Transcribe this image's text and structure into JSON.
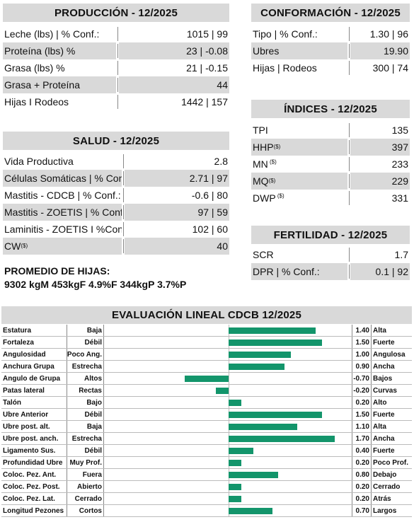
{
  "produccion": {
    "title": "PRODUCCIÓN - 12/2025",
    "rows": [
      {
        "label": "Leche (lbs) | % Conf.:",
        "value": "1015 | 99",
        "shaded": false
      },
      {
        "label": "Proteína (lbs) %",
        "value": "23 | -0.08",
        "shaded": true
      },
      {
        "label": "Grasa (lbs) %",
        "value": "21 | -0.15",
        "shaded": false
      },
      {
        "label": "Grasa + Proteína",
        "value": "44",
        "shaded": true
      },
      {
        "label": "Hijas I Rodeos",
        "value": "1442 | 157",
        "shaded": false
      }
    ]
  },
  "conformacion": {
    "title": "CONFORMACIÓN - 12/2025",
    "rows": [
      {
        "label": "Tipo | % Conf.:",
        "value": "1.30 | 96",
        "shaded": false
      },
      {
        "label": "Ubres",
        "value": "19.90",
        "shaded": true
      },
      {
        "label": "Hijas | Rodeos",
        "value": "300 | 74",
        "shaded": false
      }
    ]
  },
  "indices": {
    "title": "ÍNDICES - 12/2025",
    "rows": [
      {
        "label": "TPI",
        "sup": "",
        "value": "135",
        "shaded": false
      },
      {
        "label": "HHP",
        "sup": "($)",
        "value": "397",
        "shaded": true
      },
      {
        "label": "MN",
        "sup": "($)",
        "value": "233",
        "shaded": false
      },
      {
        "label": "MQ",
        "sup": "($)",
        "value": "229",
        "shaded": true
      },
      {
        "label": "DWP",
        "sup": "($)",
        "value": "331",
        "shaded": false
      }
    ]
  },
  "salud": {
    "title": "SALUD - 12/2025",
    "rows": [
      {
        "label": "Vida Productiva",
        "sup": "",
        "value": "2.8",
        "shaded": false
      },
      {
        "label": "Células Somáticas | % Conf.:",
        "sup": "",
        "value": "2.71 | 97",
        "shaded": true
      },
      {
        "label": "Mastitis - CDCB | % Conf.:",
        "sup": "",
        "value": "-0.6 | 80",
        "shaded": false
      },
      {
        "label": "Mastitis - ZOETIS | % Conf.:",
        "sup": "",
        "value": "97 | 59",
        "shaded": true
      },
      {
        "label": "Laminitis - ZOETIS I %Conf.:",
        "sup": "",
        "value": "102 | 60",
        "shaded": false
      },
      {
        "label": "CW",
        "sup": "($)",
        "value": "40",
        "shaded": true
      }
    ]
  },
  "fertilidad": {
    "title": "FERTILIDAD - 12/2025",
    "rows": [
      {
        "label": "SCR",
        "value": "1.7",
        "shaded": false
      },
      {
        "label": "DPR | % Conf.:",
        "value": "0.1 | 92",
        "shaded": true
      }
    ]
  },
  "promedio": {
    "title": "PROMEDIO DE HIJAS:",
    "values": "9302 kgM 453kgF 4.9%F 344kgP 3.7%P"
  },
  "lineal": {
    "title": "EVALUACIÓN LINEAL CDCB 12/2025",
    "bar_color": "#13956b",
    "scale_min": -2,
    "scale_max": 2,
    "traits": [
      {
        "name": "Estatura",
        "low": "Baja",
        "value": 1.4,
        "value_text": "1.40",
        "high": "Alta"
      },
      {
        "name": "Fortaleza",
        "low": "Débil",
        "value": 1.5,
        "value_text": "1.50",
        "high": "Fuerte"
      },
      {
        "name": "Angulosidad",
        "low": "Poco Ang.",
        "value": 1.0,
        "value_text": "1.00",
        "high": "Angulosa"
      },
      {
        "name": "Anchura Grupa",
        "low": "Estrecha",
        "value": 0.9,
        "value_text": "0.90",
        "high": "Ancha"
      },
      {
        "name": "Ángulo de Grupa",
        "low": "Altos",
        "value": -0.7,
        "value_text": "-0.70",
        "high": "Bajos"
      },
      {
        "name": "Patas lateral",
        "low": "Rectas",
        "value": -0.2,
        "value_text": "-0.20",
        "high": "Curvas"
      },
      {
        "name": "Talón",
        "low": "Bajo",
        "value": 0.2,
        "value_text": "0.20",
        "high": "Alto"
      },
      {
        "name": "Ubre Anterior",
        "low": "Débil",
        "value": 1.5,
        "value_text": "1.50",
        "high": "Fuerte"
      },
      {
        "name": "Ubre post. alt.",
        "low": "Baja",
        "value": 1.1,
        "value_text": "1.10",
        "high": "Alta"
      },
      {
        "name": "Ubre post. anch.",
        "low": "Estrecha",
        "value": 1.7,
        "value_text": "1.70",
        "high": "Ancha"
      },
      {
        "name": "Ligamento Sus.",
        "low": "Débil",
        "value": 0.4,
        "value_text": "0.40",
        "high": "Fuerte"
      },
      {
        "name": "Profundidad Ubre",
        "low": "Muy Prof.",
        "value": 0.2,
        "value_text": "0.20",
        "high": "Poco Prof."
      },
      {
        "name": "Coloc. Pez. Ant.",
        "low": "Fuera",
        "value": 0.8,
        "value_text": "0.80",
        "high": "Debajo"
      },
      {
        "name": "Coloc. Pez. Post.",
        "low": "Abierto",
        "value": 0.2,
        "value_text": "0.20",
        "high": "Cerrado"
      },
      {
        "name": "Coloc. Pez. Lat.",
        "low": "Cerrado",
        "value": 0.2,
        "value_text": "0.20",
        "high": "Atrás"
      },
      {
        "name": "Longitud Pezones",
        "low": "Cortos",
        "value": 0.7,
        "value_text": "0.70",
        "high": "Largos"
      }
    ]
  }
}
